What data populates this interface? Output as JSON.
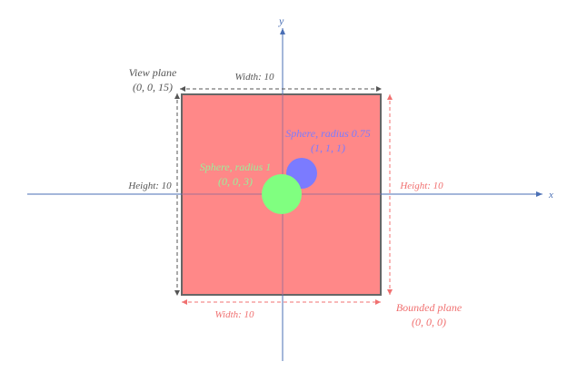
{
  "axes": {
    "x_label": "x",
    "y_label": "y",
    "color": "#4a6fb5"
  },
  "view_plane": {
    "title": "View plane",
    "coords": "(0, 0, 15)",
    "width_label": "Width: 10",
    "height_label": "Height: 10",
    "color": "#555555"
  },
  "bounded_plane": {
    "title": "Bounded plane",
    "coords": "(0, 0, 0)",
    "width_label": "Width: 10",
    "height_label": "Height: 10",
    "color": "#f07070",
    "fill": "#ff8888"
  },
  "sphere_blue": {
    "title": "Sphere, radius 0.75",
    "coords": "(1, 1, 1)",
    "color": "#7b7bff"
  },
  "sphere_green": {
    "title": "Sphere, radius 1",
    "coords": "(0, 0, 3)",
    "color": "#80ff80",
    "label_color": "#9af09a"
  }
}
